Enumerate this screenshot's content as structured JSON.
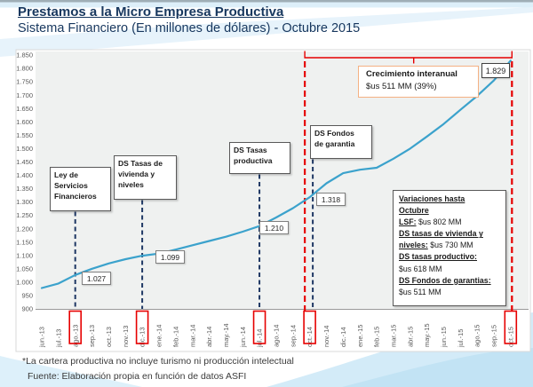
{
  "header": {
    "title": "Prestamos a la Micro Empresa Productiva",
    "subtitle": "Sistema Financiero (En millones de dólares) - Octubre 2015"
  },
  "chart_data": {
    "type": "line",
    "title": "Prestamos a la Micro Empresa Productiva - Sistema Financiero (En millones de dólares)",
    "xlabel": "",
    "ylabel": "",
    "ylim": [
      900,
      1850
    ],
    "y_tick_step": 50,
    "grid": false,
    "legend_position": "none",
    "series_color": "#3BA2CC",
    "categories": [
      "jun.-13",
      "jul.-13",
      "ago.-13",
      "sep.-13",
      "oct.-13",
      "nov.-13",
      "dic.-13",
      "ene.-14",
      "feb.-14",
      "mar.-14",
      "abr.-14",
      "may.-14",
      "jun.-14",
      "jul.-14",
      "ago.-14",
      "sep.-14",
      "oct.-14",
      "nov.-14",
      "dic.-14",
      "ene.-15",
      "feb.-15",
      "mar.-15",
      "abr.-15",
      "may.-15",
      "jun.-15",
      "jul.-15",
      "ago.-15",
      "sep.-15",
      "oct.-15"
    ],
    "values": [
      978,
      995,
      1027,
      1050,
      1070,
      1086,
      1099,
      1107,
      1122,
      1138,
      1154,
      1170,
      1189,
      1210,
      1242,
      1277,
      1318,
      1370,
      1408,
      1421,
      1428,
      1462,
      1500,
      1545,
      1592,
      1645,
      1697,
      1755,
      1829
    ],
    "y_tick_labels": [
      "1.850",
      "1.800",
      "1.750",
      "1.700",
      "1.650",
      "1.600",
      "1.550",
      "1.500",
      "1.450",
      "1.400",
      "1.350",
      "1.300",
      "1.250",
      "1.200",
      "1.150",
      "1.100",
      "1.050",
      "1.000",
      "950",
      "900"
    ],
    "highlighted_categories": [
      "ago.-13",
      "dic.-13",
      "jul.-14",
      "oct.-14",
      "oct.-15"
    ],
    "comparison_span": {
      "from": "oct.-14",
      "to": "oct.-15"
    }
  },
  "annotations": {
    "events": [
      {
        "category": "ago.-13",
        "label": "Ley de\nServicios\nFinancieros"
      },
      {
        "category": "dic.-13",
        "label": "DS Tasas de\nvivienda y\nniveles"
      },
      {
        "category": "jul.-14",
        "label": "DS Tasas\nproductiva"
      },
      {
        "category": "oct.-14",
        "label": "DS Fondos\nde garantia"
      }
    ],
    "points": [
      {
        "category": "ago.-13",
        "value": 1027,
        "label": "1.027"
      },
      {
        "category": "dic.-13",
        "value": 1099,
        "label": "1.099"
      },
      {
        "category": "jul.-14",
        "value": 1210,
        "label": "1.210"
      },
      {
        "category": "oct.-14",
        "value": 1318,
        "label": "1.318"
      },
      {
        "category": "oct.-15",
        "value": 1829,
        "label": "1.829"
      }
    ],
    "growth_box": {
      "line1": "Crecimiento interanual",
      "line2": "$us 511 MM (39%)"
    },
    "variations": {
      "lines": [
        {
          "b": "Variaciones hasta",
          "n": ""
        },
        {
          "b": "Octubre",
          "n": ""
        },
        {
          "b": "LSF:",
          "n": " $us 802 MM"
        },
        {
          "b": "DS tasas de vivienda y",
          "n": ""
        },
        {
          "b": "niveles:",
          "n": " $us 730 MM"
        },
        {
          "b": "DS tasas productivo:",
          "n": ""
        },
        {
          "b": "",
          "n": "$us 618 MM"
        },
        {
          "b": "DS Fondos de garantias:",
          "n": ""
        },
        {
          "b": "",
          "n": "$us 511 MM"
        }
      ]
    }
  },
  "footer": {
    "note": "*La cartera productiva no incluye turismo ni producción intelectual",
    "source": "Fuente: Elaboración propia en función de datos ASFI"
  },
  "colors": {
    "title": "#17375E",
    "line": "#3BA2CC",
    "event_dash": "#1F3864",
    "highlight_red": "#E60000",
    "growth_border": "#F4B183",
    "plot_bg": "#EFF1F0",
    "axis_text": "#595959",
    "decor_blue": "#CFE8F6"
  }
}
